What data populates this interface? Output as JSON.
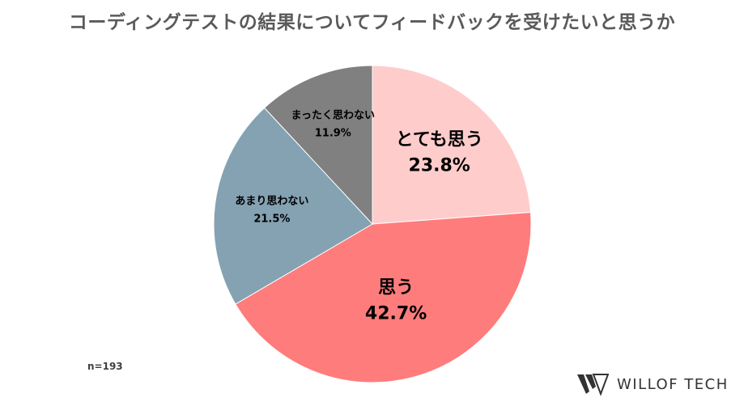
{
  "title": "コーディングテストの結果についてフィードバックを受けたいと思うか",
  "note": "n=193",
  "logo_text": "WILLOF TECH",
  "chart_data": {
    "type": "pie",
    "title": "コーディングテストの結果についてフィードバックを受けたいと思うか",
    "start": "12 o'clock",
    "direction": "clockwise",
    "legend": "none",
    "slices": [
      {
        "label": "とても思う",
        "value": 23.8,
        "value_label": "23.8%",
        "color": "#ffcccc",
        "label_size": "large"
      },
      {
        "label": "思う",
        "value": 42.7,
        "value_label": "42.7%",
        "color": "#ff7c7c",
        "label_size": "large"
      },
      {
        "label": "あまり思わない",
        "value": 21.5,
        "value_label": "21.5%",
        "color": "#84a2b2",
        "label_size": "small"
      },
      {
        "label": "まったく思わない",
        "value": 11.9,
        "value_label": "11.9%",
        "color": "#808080",
        "label_size": "small"
      }
    ]
  }
}
